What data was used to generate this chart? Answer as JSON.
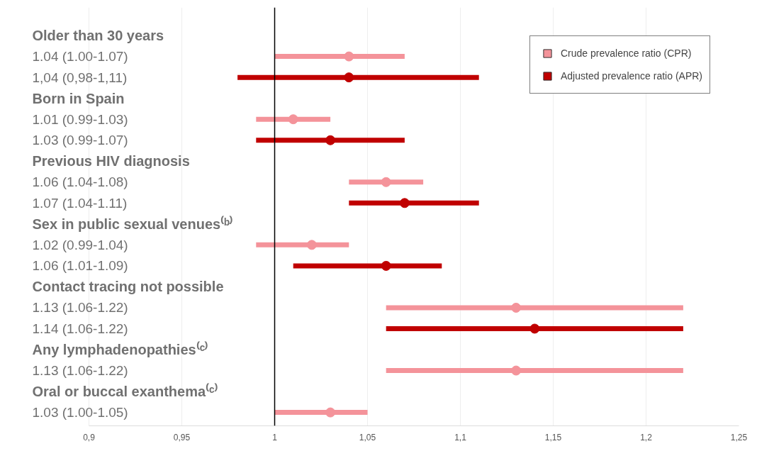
{
  "chart_data": {
    "type": "scatter",
    "orientation": "horizontal",
    "categories": [
      "Older than 30 years",
      "1.04 (1.00-1.07)",
      "1,04 (0,98-1,11)",
      "Born in Spain",
      "1.01 (0.99-1.03)",
      "1.03 (0.99-1.07)",
      "Previous HIV diagnosis",
      "1.06 (1.04-1.08)",
      "1.07 (1.04-1.11)",
      "Sex in public sexual venues⁽ᵇ⁾",
      "1.02 (0.99-1.04)",
      "1.06 (1.01-1.09)",
      "Contact tracing not possible",
      "1.13 (1.06-1.22)",
      "1.14 (1.06-1.22)",
      "Any lymphadenopathies⁽ᶜ⁾",
      "1.13 (1.06-1.22)",
      "Oral or buccal exanthema⁽ᶜ⁾",
      "1.03 (1.00-1.05)"
    ],
    "series": [
      {
        "name": "Crude prevalence ratio (CPR)",
        "color": "#f4939a",
        "values": [
          null,
          1.04,
          null,
          null,
          1.01,
          null,
          null,
          1.06,
          null,
          null,
          1.02,
          null,
          null,
          1.13,
          null,
          null,
          1.13,
          null,
          1.03
        ],
        "errors": [
          null,
          [
            1.0,
            1.07
          ],
          null,
          null,
          [
            0.99,
            1.03
          ],
          null,
          null,
          [
            1.04,
            1.08
          ],
          null,
          null,
          [
            0.99,
            1.04
          ],
          null,
          null,
          [
            1.06,
            1.22
          ],
          null,
          null,
          [
            1.06,
            1.22
          ],
          null,
          [
            1.0,
            1.05
          ]
        ]
      },
      {
        "name": "Adjusted prevalence ratio (APR)",
        "color": "#c00000",
        "values": [
          null,
          null,
          1.04,
          null,
          null,
          1.03,
          null,
          null,
          1.07,
          null,
          null,
          1.06,
          null,
          null,
          1.14,
          null,
          null,
          null,
          null
        ],
        "errors": [
          null,
          null,
          [
            0.98,
            1.11
          ],
          null,
          null,
          [
            0.99,
            1.07
          ],
          null,
          null,
          [
            1.04,
            1.11
          ],
          null,
          null,
          [
            1.01,
            1.09
          ],
          null,
          null,
          [
            1.06,
            1.22
          ],
          null,
          null,
          null,
          null
        ]
      }
    ],
    "xlim": [
      0.9,
      1.25
    ],
    "xticks": [
      {
        "value": 0.9,
        "label": "0,9"
      },
      {
        "value": 0.95,
        "label": "0,95"
      },
      1,
      {
        "value": 1.05,
        "label": "1,05"
      },
      {
        "value": 1.1,
        "label": "1,1"
      },
      {
        "value": 1.15,
        "label": "1,15"
      },
      {
        "value": 1.2,
        "label": "1,2"
      },
      {
        "value": 1.25,
        "label": "1,25"
      }
    ],
    "ref_lines": [
      {
        "axis": "x",
        "value": 1,
        "color": "#000000"
      }
    ],
    "grid": "x",
    "legend": "top right",
    "marker": "circle"
  }
}
